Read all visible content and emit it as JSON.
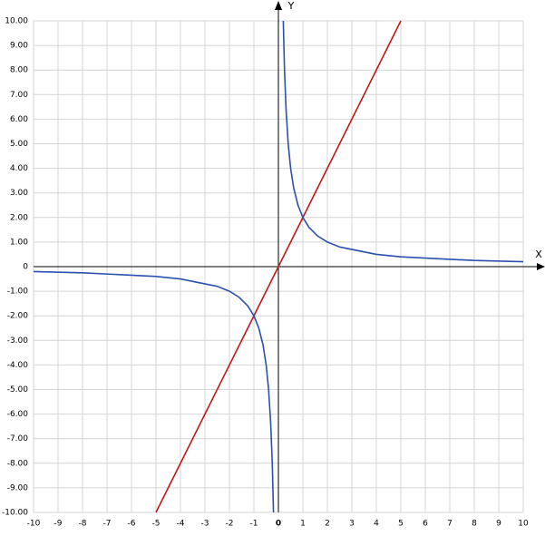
{
  "chart_data": {
    "type": "line",
    "x_label": "X",
    "y_label": "Y",
    "xlim": [
      -10,
      10
    ],
    "ylim": [
      -10,
      10
    ],
    "xticks": [
      -10,
      -9,
      -8,
      -7,
      -6,
      -5,
      -4,
      -3,
      -2,
      -1,
      0,
      1,
      2,
      3,
      4,
      5,
      6,
      7,
      8,
      9,
      10
    ],
    "yticks": [
      {
        "value": -10,
        "label": "-10.00"
      },
      {
        "value": -9,
        "label": "-9.00"
      },
      {
        "value": -8,
        "label": "-8.00"
      },
      {
        "value": -7,
        "label": "-7.00"
      },
      {
        "value": -6,
        "label": "-6.00"
      },
      {
        "value": -5,
        "label": "-5.00"
      },
      {
        "value": -4,
        "label": "-4.00"
      },
      {
        "value": -3,
        "label": "-3.00"
      },
      {
        "value": -2,
        "label": "-2.00"
      },
      {
        "value": -1,
        "label": "-1.00"
      },
      0,
      {
        "value": 1,
        "label": "1.00"
      },
      {
        "value": 2,
        "label": "2.00"
      },
      {
        "value": 3,
        "label": "3.00"
      },
      {
        "value": 4,
        "label": "4.00"
      },
      {
        "value": 5,
        "label": "5.00"
      },
      {
        "value": 6,
        "label": "6.00"
      },
      {
        "value": 7,
        "label": "7.00"
      },
      {
        "value": 8,
        "label": "8.00"
      },
      {
        "value": 9,
        "label": "9.00"
      },
      {
        "value": 10,
        "label": "10.00"
      }
    ],
    "grid": true,
    "series": [
      {
        "color": "#c01818",
        "x": [
          -5,
          5
        ],
        "values": [
          -10,
          10
        ]
      },
      {
        "color": "#2a50b0",
        "x": [
          -10,
          -8,
          -5,
          -4,
          -2.5,
          -2,
          -1.6,
          -1.25,
          -1,
          -0.8,
          -0.625,
          -0.5,
          -0.4,
          -0.3125,
          -0.25,
          -0.2
        ],
        "values": [
          -0.2,
          -0.25,
          -0.4,
          -0.5,
          -0.8,
          -1,
          -1.25,
          -1.6,
          -2,
          -2.5,
          -3.2,
          -4,
          -5,
          -6.4,
          -8,
          -10
        ]
      },
      {
        "color": "#2a50b0",
        "x": [
          0.2,
          0.25,
          0.3125,
          0.4,
          0.5,
          0.625,
          0.8,
          1,
          1.25,
          1.6,
          2,
          2.5,
          4,
          5,
          8,
          10
        ],
        "values": [
          10,
          8,
          6.4,
          5,
          4,
          3.2,
          2.5,
          2,
          1.6,
          1.25,
          1,
          0.8,
          0.5,
          0.4,
          0.25,
          0.2
        ]
      }
    ]
  }
}
